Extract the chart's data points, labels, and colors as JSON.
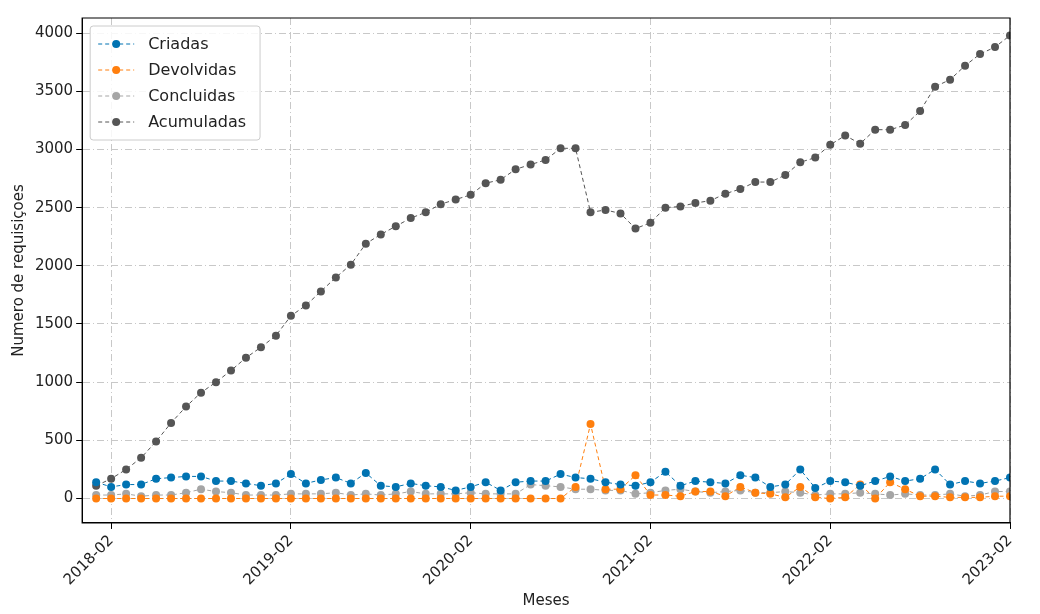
{
  "chart_data": {
    "type": "line",
    "xlabel": "Meses",
    "ylabel": "Numero de requisiçoes",
    "x": [
      "2018-01",
      "2018-02",
      "2018-03",
      "2018-04",
      "2018-05",
      "2018-06",
      "2018-07",
      "2018-08",
      "2018-09",
      "2018-10",
      "2018-11",
      "2018-12",
      "2019-01",
      "2019-02",
      "2019-03",
      "2019-04",
      "2019-05",
      "2019-06",
      "2019-07",
      "2019-08",
      "2019-09",
      "2019-10",
      "2019-11",
      "2019-12",
      "2020-01",
      "2020-02",
      "2020-03",
      "2020-04",
      "2020-05",
      "2020-06",
      "2020-07",
      "2020-08",
      "2020-09",
      "2020-10",
      "2020-11",
      "2020-12",
      "2021-01",
      "2021-02",
      "2021-03",
      "2021-04",
      "2021-05",
      "2021-06",
      "2021-07",
      "2021-08",
      "2021-09",
      "2021-10",
      "2021-11",
      "2021-12",
      "2022-01",
      "2022-02",
      "2022-03",
      "2022-04",
      "2022-05",
      "2022-06",
      "2022-07",
      "2022-08",
      "2022-09",
      "2022-10",
      "2022-11",
      "2022-12",
      "2023-01",
      "2023-02"
    ],
    "series": [
      {
        "name": "Criadas",
        "color": "#0173b2",
        "values": [
          140,
          100,
          120,
          120,
          170,
          180,
          190,
          190,
          150,
          150,
          130,
          110,
          130,
          210,
          130,
          160,
          180,
          130,
          220,
          110,
          100,
          130,
          110,
          100,
          70,
          100,
          140,
          70,
          140,
          150,
          150,
          210,
          180,
          170,
          140,
          120,
          110,
          140,
          230,
          110,
          150,
          140,
          130,
          200,
          180,
          100,
          120,
          250,
          90,
          150,
          140,
          110,
          150,
          190,
          150,
          170,
          250,
          120,
          150,
          130,
          150,
          180
        ]
      },
      {
        "name": "Devolvidas",
        "color": "#ff7f0e",
        "values": [
          0,
          0,
          0,
          0,
          0,
          0,
          0,
          0,
          0,
          0,
          0,
          0,
          0,
          0,
          0,
          0,
          0,
          0,
          0,
          0,
          0,
          0,
          0,
          0,
          0,
          0,
          0,
          0,
          0,
          0,
          0,
          0,
          100,
          640,
          80,
          80,
          200,
          30,
          30,
          20,
          60,
          60,
          20,
          100,
          50,
          40,
          10,
          100,
          10,
          0,
          10,
          120,
          0,
          140,
          80,
          20,
          20,
          10,
          10,
          10,
          20,
          20
        ]
      },
      {
        "name": "Concluidas",
        "color": "#a5a5a5",
        "values": [
          30,
          30,
          40,
          20,
          30,
          30,
          50,
          80,
          60,
          50,
          30,
          30,
          30,
          40,
          40,
          40,
          50,
          30,
          40,
          30,
          40,
          60,
          40,
          40,
          40,
          50,
          40,
          40,
          40,
          120,
          110,
          100,
          80,
          80,
          70,
          70,
          40,
          50,
          70,
          80,
          60,
          50,
          60,
          70,
          50,
          50,
          60,
          50,
          30,
          40,
          40,
          50,
          40,
          30,
          40,
          30,
          30,
          40,
          20,
          30,
          60,
          60
        ]
      },
      {
        "name": "Acumuladas",
        "color": "#555555",
        "values": [
          110,
          170,
          250,
          350,
          490,
          650,
          790,
          910,
          1000,
          1100,
          1210,
          1300,
          1400,
          1570,
          1660,
          1780,
          1900,
          2010,
          2190,
          2270,
          2340,
          2410,
          2460,
          2530,
          2570,
          2610,
          2710,
          2740,
          2830,
          2870,
          2910,
          3010,
          3010,
          2460,
          2480,
          2450,
          2320,
          2370,
          2500,
          2510,
          2540,
          2560,
          2620,
          2660,
          2720,
          2720,
          2780,
          2890,
          2930,
          3040,
          3120,
          3050,
          3170,
          3170,
          3210,
          3330,
          3540,
          3600,
          3720,
          3820,
          3880,
          3980
        ]
      }
    ],
    "xlim": [
      "2017-12-03",
      "2023-02"
    ],
    "xticks": [
      "2018-02",
      "2019-02",
      "2020-02",
      "2021-02",
      "2022-02",
      "2023-02"
    ],
    "ylim": [
      -210,
      4130
    ],
    "yticks": [
      0,
      500,
      1000,
      1500,
      2000,
      2500,
      3000,
      3500,
      4000
    ],
    "grid": true,
    "legend": "top left",
    "marker": "circle",
    "line_style": "dashed"
  }
}
